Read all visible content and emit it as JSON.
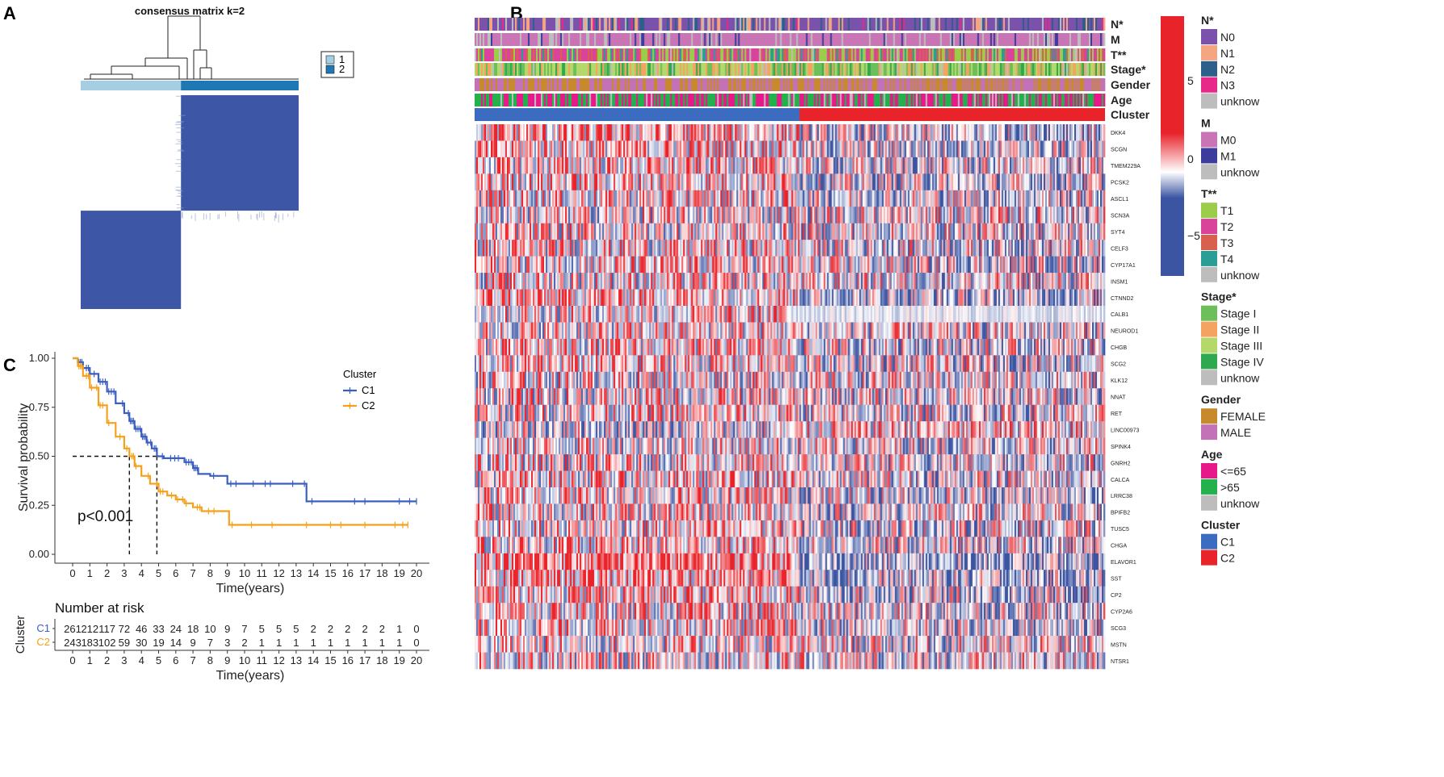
{
  "panel_labels": [
    "A",
    "B",
    "C"
  ],
  "chart_data": [
    {
      "type": "heatmap",
      "panel": "A",
      "title": "consensus matrix k=2",
      "legend": [
        {
          "label": "1",
          "color": "#a6cee3"
        },
        {
          "label": "2",
          "color": "#1f78b4"
        }
      ],
      "cluster_fraction": [
        0.46,
        0.54
      ],
      "colors": {
        "high": "#3d56a6",
        "low": "#ffffff"
      }
    },
    {
      "type": "heatmap",
      "panel": "B",
      "annotation_tracks": [
        "N*",
        "M",
        "T**",
        "Stage*",
        "Gender",
        "Age",
        "Cluster"
      ],
      "genes": [
        "DKK4",
        "SCGN",
        "TMEM229A",
        "PCSK2",
        "ASCL1",
        "SCN3A",
        "SYT4",
        "CELF3",
        "CYP17A1",
        "INSM1",
        "CTNND2",
        "CALB1",
        "NEUROD1",
        "CHGB",
        "SCG2",
        "KLK12",
        "NNAT",
        "RET",
        "LINC00973",
        "SPINK4",
        "GNRH2",
        "CALCA",
        "LRRC38",
        "BPIFB2",
        "TUSC5",
        "CHGA",
        "ELAVOR1",
        "SST",
        "CP2",
        "CYP2A6",
        "SCG3",
        "MSTN",
        "NTSR1"
      ],
      "cluster_split": 0.516,
      "color_scale": {
        "ticks": [
          "5",
          "0",
          "−5"
        ],
        "max_color": "#e8232a",
        "mid_color": "#ffffff",
        "min_color": "#3b55a3"
      },
      "legend_groups": [
        {
          "title": "N*",
          "items": [
            {
              "label": "N0",
              "color": "#7b52ab"
            },
            {
              "label": "N1",
              "color": "#f4a582"
            },
            {
              "label": "N2",
              "color": "#2c5f8a"
            },
            {
              "label": "N3",
              "color": "#e7298a"
            },
            {
              "label": "unknow",
              "color": "#bdbdbd"
            }
          ]
        },
        {
          "title": "M",
          "items": [
            {
              "label": "M0",
              "color": "#c975b5"
            },
            {
              "label": "M1",
              "color": "#3c3c9c"
            },
            {
              "label": "unknow",
              "color": "#bdbdbd"
            }
          ]
        },
        {
          "title": "T**",
          "items": [
            {
              "label": "T1",
              "color": "#9bcc4a"
            },
            {
              "label": "T2",
              "color": "#d9449a"
            },
            {
              "label": "T3",
              "color": "#d8604e"
            },
            {
              "label": "T4",
              "color": "#2a9d95"
            },
            {
              "label": "unknow",
              "color": "#bdbdbd"
            }
          ]
        },
        {
          "title": "Stage*",
          "items": [
            {
              "label": "Stage I",
              "color": "#6cbf5a"
            },
            {
              "label": "Stage II",
              "color": "#f4a460"
            },
            {
              "label": "Stage III",
              "color": "#b5d86a"
            },
            {
              "label": "Stage IV",
              "color": "#2fa84f"
            },
            {
              "label": "unknow",
              "color": "#bdbdbd"
            }
          ]
        },
        {
          "title": "Gender",
          "items": [
            {
              "label": "FEMALE",
              "color": "#c8892c"
            },
            {
              "label": "MALE",
              "color": "#c372b8"
            }
          ]
        },
        {
          "title": "Age",
          "items": [
            {
              "label": "<=65",
              "color": "#e7198a"
            },
            {
              "label": ">65",
              "color": "#22b14c"
            },
            {
              "label": "unknow",
              "color": "#bdbdbd"
            }
          ]
        },
        {
          "title": "Cluster",
          "items": [
            {
              "label": "C1",
              "color": "#3b6cc0"
            },
            {
              "label": "C2",
              "color": "#e8232a"
            }
          ]
        }
      ]
    },
    {
      "type": "line",
      "panel": "C",
      "xlabel": "Time(years)",
      "ylabel": "Survival probability",
      "x_ticks": [
        "0",
        "1",
        "2",
        "3",
        "4",
        "5",
        "6",
        "7",
        "8",
        "9",
        "10",
        "11",
        "12",
        "13",
        "14",
        "15",
        "16",
        "17",
        "18",
        "19",
        "20"
      ],
      "y_ticks": [
        "0.00",
        "0.25",
        "0.50",
        "0.75",
        "1.00"
      ],
      "xlim": [
        0,
        20
      ],
      "ylim": [
        0,
        1
      ],
      "legend_title": "Cluster",
      "pvalue": "p<0.001",
      "median": {
        "y": 0.5,
        "C1": 4.9,
        "C2": 3.3
      },
      "series": [
        {
          "name": "C1",
          "color": "#3b5fc0",
          "x": [
            0,
            0.3,
            0.6,
            1.0,
            1.5,
            2.0,
            2.5,
            3.0,
            3.3,
            3.6,
            4.0,
            4.3,
            4.6,
            4.9,
            5.3,
            5.8,
            6.5,
            7.0,
            7.3,
            8.0,
            9.0,
            10.0,
            11.0,
            12.0,
            13.0,
            13.6,
            14.0,
            16.0,
            18.0,
            20.0
          ],
          "y": [
            1.0,
            0.98,
            0.95,
            0.92,
            0.88,
            0.83,
            0.77,
            0.72,
            0.68,
            0.64,
            0.6,
            0.57,
            0.54,
            0.5,
            0.49,
            0.49,
            0.47,
            0.44,
            0.41,
            0.4,
            0.36,
            0.36,
            0.36,
            0.36,
            0.36,
            0.27,
            0.27,
            0.27,
            0.27,
            0.27
          ]
        },
        {
          "name": "C2",
          "color": "#f5a11c",
          "x": [
            0,
            0.3,
            0.6,
            1.0,
            1.5,
            2.0,
            2.5,
            3.0,
            3.3,
            3.6,
            4.0,
            4.5,
            5.0,
            5.5,
            6.0,
            6.5,
            7.0,
            7.5,
            8.0,
            9.1,
            10.0,
            12.0,
            14.0,
            16.0,
            18.0,
            19.5
          ],
          "y": [
            1.0,
            0.96,
            0.91,
            0.85,
            0.76,
            0.67,
            0.6,
            0.54,
            0.5,
            0.45,
            0.4,
            0.36,
            0.32,
            0.3,
            0.28,
            0.26,
            0.24,
            0.22,
            0.22,
            0.15,
            0.15,
            0.15,
            0.15,
            0.15,
            0.15,
            0.15
          ]
        }
      ],
      "risk_table": {
        "title": "Number at risk",
        "y_label": "Cluster",
        "rows": [
          {
            "name": "C1",
            "color": "#3b5fc0",
            "values": [
              "261",
              "212",
              "117",
              "72",
              "46",
              "33",
              "24",
              "18",
              "10",
              "9",
              "7",
              "5",
              "5",
              "5",
              "2",
              "2",
              "2",
              "2",
              "2",
              "1",
              "0"
            ]
          },
          {
            "name": "C2",
            "color": "#f5a11c",
            "values": [
              "243",
              "183",
              "102",
              "59",
              "30",
              "19",
              "14",
              "9",
              "7",
              "3",
              "2",
              "1",
              "1",
              "1",
              "1",
              "1",
              "1",
              "1",
              "1",
              "1",
              "0"
            ]
          }
        ],
        "xlabel": "Time(years)"
      }
    }
  ]
}
